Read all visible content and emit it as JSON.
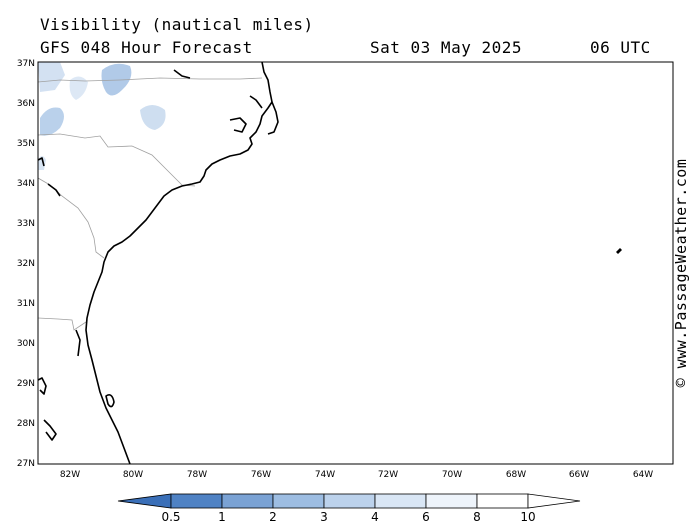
{
  "header": {
    "line1": "Visibility (nautical miles)",
    "model": "GFS 048 Hour Forecast",
    "date": "Sat 03 May 2025",
    "time": "06 UTC"
  },
  "credit": "© www.PassageWeather.com",
  "map": {
    "lat_labels": [
      "37N",
      "36N",
      "35N",
      "34N",
      "33N",
      "32N",
      "31N",
      "30N",
      "29N",
      "28N",
      "27N"
    ],
    "lon_labels": [
      "82W",
      "80W",
      "78W",
      "76W",
      "74W",
      "72W",
      "70W",
      "68W",
      "66W",
      "64W"
    ],
    "lat_range": [
      27,
      37
    ],
    "lon_range": [
      -83,
      -63.5
    ]
  },
  "colorbar": {
    "labels": [
      "0.5",
      "1",
      "2",
      "3",
      "4",
      "6",
      "8",
      "10"
    ],
    "colors": [
      "#3a6fb8",
      "#4f82c4",
      "#7aa2d4",
      "#9dbde2",
      "#bcd2ec",
      "#d9e6f5",
      "#eef4fb",
      "#ffffff",
      "#ffffff"
    ]
  },
  "colors": {
    "coast": "#000000",
    "borders": "#a0a0a0",
    "fog": "#9dbde2"
  }
}
